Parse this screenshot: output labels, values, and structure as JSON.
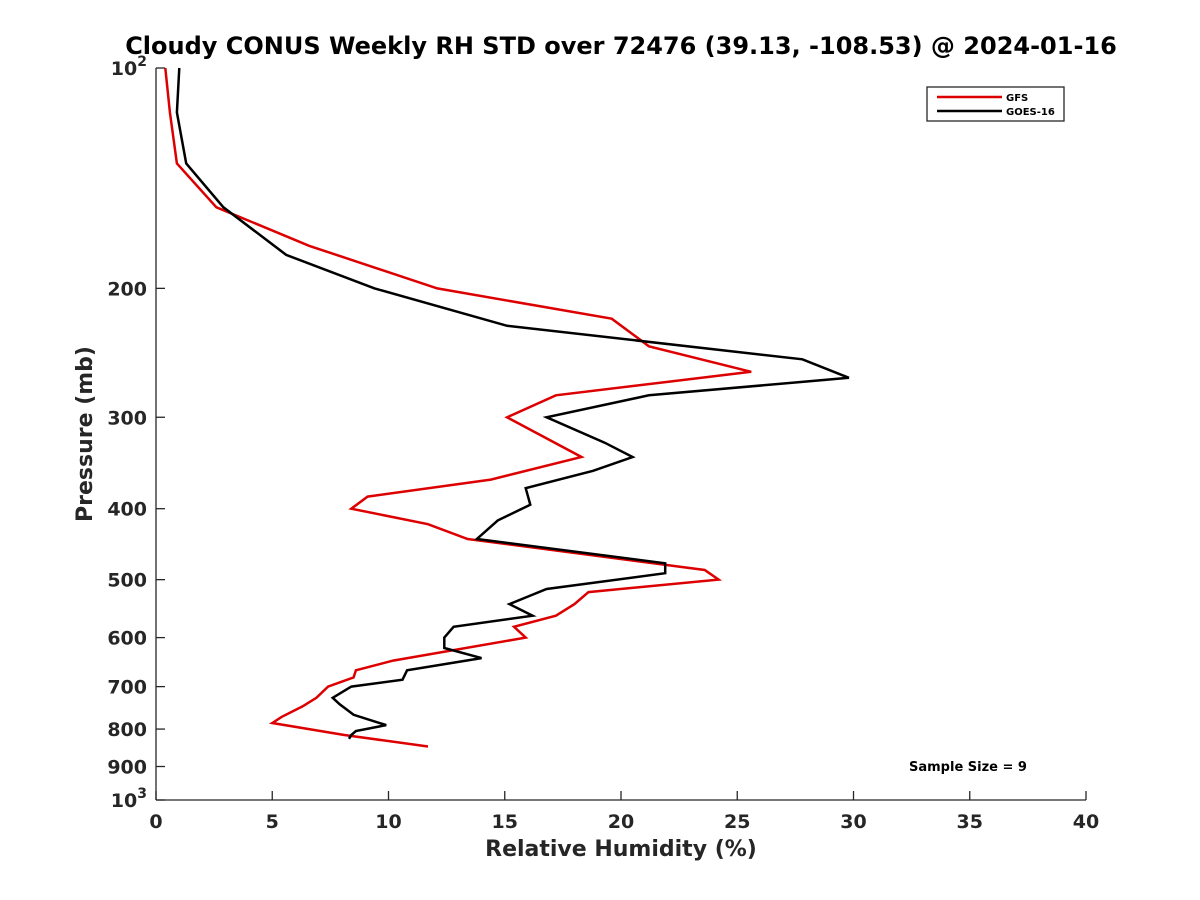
{
  "chart_data": {
    "type": "line",
    "title": "Cloudy CONUS Weekly RH STD over 72476 (39.13, -108.53) @ 2024-01-16",
    "xlabel": "Relative Humidity (%)",
    "ylabel": "Pressure (mb)",
    "xlim": [
      0,
      40
    ],
    "ylim": [
      100,
      1000
    ],
    "yscale": "log",
    "y_reversed": true,
    "grid": false,
    "legend_position": "top-right",
    "x_ticks": [
      0,
      5,
      10,
      15,
      20,
      25,
      30,
      35,
      40
    ],
    "x_tick_labels": [
      "0",
      "5",
      "10",
      "15",
      "20",
      "25",
      "30",
      "35",
      "40"
    ],
    "y_ticks": [
      {
        "value": 100,
        "base": "10",
        "exp": "2"
      },
      {
        "value": 200,
        "label": "200"
      },
      {
        "value": 300,
        "label": "300"
      },
      {
        "value": 400,
        "label": "400"
      },
      {
        "value": 500,
        "label": "500"
      },
      {
        "value": 600,
        "label": "600"
      },
      {
        "value": 700,
        "label": "700"
      },
      {
        "value": 800,
        "label": "800"
      },
      {
        "value": 900,
        "label": "900"
      },
      {
        "value": 1000,
        "base": "10",
        "exp": "3"
      }
    ],
    "series": [
      {
        "name": "GFS",
        "color": "#dd0000",
        "points": [
          [
            0.4,
            100
          ],
          [
            0.6,
            115
          ],
          [
            0.9,
            135
          ],
          [
            2.6,
            155
          ],
          [
            6.6,
            175
          ],
          [
            12.1,
            200
          ],
          [
            19.6,
            220
          ],
          [
            21.2,
            240
          ],
          [
            25.6,
            260
          ],
          [
            17.2,
            280
          ],
          [
            15.1,
            300
          ],
          [
            18.3,
            340
          ],
          [
            14.4,
            365
          ],
          [
            9.1,
            385
          ],
          [
            8.4,
            400
          ],
          [
            11.7,
            420
          ],
          [
            13.4,
            440
          ],
          [
            23.6,
            485
          ],
          [
            24.2,
            500
          ],
          [
            18.6,
            520
          ],
          [
            18.0,
            540
          ],
          [
            17.2,
            560
          ],
          [
            15.4,
            580
          ],
          [
            15.9,
            600
          ],
          [
            10.2,
            645
          ],
          [
            8.6,
            665
          ],
          [
            8.5,
            680
          ],
          [
            7.4,
            700
          ],
          [
            6.9,
            725
          ],
          [
            6.3,
            745
          ],
          [
            5.4,
            770
          ],
          [
            5.0,
            785
          ],
          [
            8.1,
            815
          ],
          [
            11.7,
            845
          ]
        ]
      },
      {
        "name": "GOES-16",
        "color": "#000000",
        "points": [
          [
            1.0,
            100
          ],
          [
            0.9,
            115
          ],
          [
            1.3,
            135
          ],
          [
            2.9,
            155
          ],
          [
            5.6,
            180
          ],
          [
            9.4,
            200
          ],
          [
            15.1,
            225
          ],
          [
            27.8,
            250
          ],
          [
            29.8,
            265
          ],
          [
            21.2,
            280
          ],
          [
            16.8,
            300
          ],
          [
            19.3,
            325
          ],
          [
            20.5,
            340
          ],
          [
            18.8,
            355
          ],
          [
            15.9,
            375
          ],
          [
            16.1,
            395
          ],
          [
            14.7,
            415
          ],
          [
            13.8,
            440
          ],
          [
            21.9,
            475
          ],
          [
            21.9,
            490
          ],
          [
            16.8,
            515
          ],
          [
            15.2,
            540
          ],
          [
            16.2,
            560
          ],
          [
            12.8,
            580
          ],
          [
            12.4,
            600
          ],
          [
            12.4,
            620
          ],
          [
            14.0,
            640
          ],
          [
            10.8,
            665
          ],
          [
            10.6,
            685
          ],
          [
            8.4,
            700
          ],
          [
            7.6,
            725
          ],
          [
            7.9,
            740
          ],
          [
            8.5,
            765
          ],
          [
            9.9,
            790
          ],
          [
            8.6,
            805
          ],
          [
            8.4,
            815
          ],
          [
            8.3,
            825
          ]
        ]
      }
    ],
    "annotation": "Sample Size = 9"
  }
}
